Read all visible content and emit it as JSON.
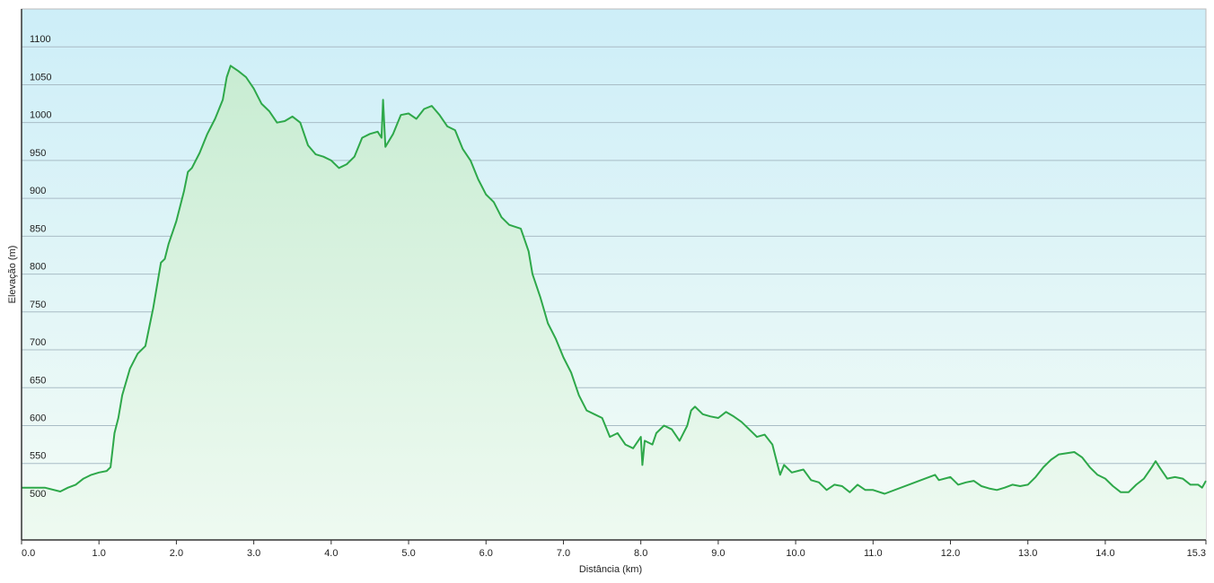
{
  "chart_data": {
    "type": "area",
    "xlabel": "Distância  (km)",
    "ylabel": "Elevação (m)",
    "color": "#2ea84a",
    "grid": true,
    "xlim": [
      0,
      15.3
    ],
    "ylim": [
      449,
      1150
    ],
    "yticks": [
      500,
      550,
      600,
      650,
      700,
      750,
      800,
      850,
      900,
      950,
      1000,
      1050,
      1100
    ],
    "xticks": [
      {
        "value": 0,
        "label": "0.0"
      },
      {
        "value": 1,
        "label": "1.0"
      },
      {
        "value": 2,
        "label": "2.0"
      },
      {
        "value": 3,
        "label": "3.0"
      },
      {
        "value": 4,
        "label": "4.0"
      },
      {
        "value": 5,
        "label": "5.0"
      },
      {
        "value": 6,
        "label": "6.0"
      },
      {
        "value": 7,
        "label": "7.0"
      },
      {
        "value": 8,
        "label": "8.0"
      },
      {
        "value": 9,
        "label": "9.0"
      },
      {
        "value": 10,
        "label": "10.0"
      },
      {
        "value": 11,
        "label": "11.0"
      },
      {
        "value": 12,
        "label": "12.0"
      },
      {
        "value": 13,
        "label": "13.0"
      },
      {
        "value": 14,
        "label": "14.0"
      },
      {
        "value": 15.3,
        "label": "15.3"
      }
    ],
    "x": [
      0,
      0.3,
      0.5,
      0.6,
      0.7,
      0.8,
      0.9,
      1.0,
      1.1,
      1.15,
      1.2,
      1.25,
      1.3,
      1.4,
      1.5,
      1.6,
      1.7,
      1.8,
      1.85,
      1.9,
      2.0,
      2.05,
      2.1,
      2.15,
      2.2,
      2.3,
      2.4,
      2.5,
      2.6,
      2.65,
      2.7,
      2.8,
      2.9,
      3.0,
      3.1,
      3.2,
      3.3,
      3.4,
      3.5,
      3.6,
      3.7,
      3.8,
      3.9,
      4.0,
      4.1,
      4.2,
      4.3,
      4.4,
      4.5,
      4.6,
      4.65,
      4.67,
      4.7,
      4.8,
      4.9,
      5.0,
      5.1,
      5.2,
      5.3,
      5.4,
      5.5,
      5.6,
      5.7,
      5.8,
      5.9,
      6.0,
      6.1,
      6.2,
      6.3,
      6.45,
      6.55,
      6.6,
      6.7,
      6.8,
      6.9,
      7.0,
      7.1,
      7.2,
      7.3,
      7.4,
      7.5,
      7.6,
      7.7,
      7.8,
      7.9,
      8.0,
      8.02,
      8.05,
      8.15,
      8.2,
      8.3,
      8.4,
      8.5,
      8.6,
      8.65,
      8.7,
      8.8,
      8.9,
      9.0,
      9.1,
      9.2,
      9.3,
      9.4,
      9.5,
      9.6,
      9.7,
      9.8,
      9.85,
      9.95,
      10.1,
      10.2,
      10.3,
      10.4,
      10.5,
      10.6,
      10.7,
      10.8,
      10.9,
      11.0,
      11.15,
      11.8,
      11.85,
      12.0,
      12.1,
      12.2,
      12.3,
      12.4,
      12.5,
      12.6,
      12.7,
      12.8,
      12.9,
      13.0,
      13.1,
      13.2,
      13.3,
      13.4,
      13.6,
      13.7,
      13.8,
      13.9,
      14.0,
      14.1,
      14.2,
      14.3,
      14.4,
      14.5,
      14.6,
      14.65,
      14.7,
      14.8,
      14.9,
      15.0,
      15.1,
      15.2,
      15.25,
      15.3
    ],
    "values": [
      518,
      518,
      513,
      518,
      522,
      530,
      535,
      538,
      540,
      545,
      590,
      610,
      640,
      675,
      695,
      705,
      755,
      815,
      820,
      840,
      870,
      890,
      910,
      935,
      940,
      960,
      985,
      1005,
      1030,
      1060,
      1075,
      1068,
      1060,
      1045,
      1025,
      1015,
      1000,
      1002,
      1008,
      1000,
      970,
      958,
      955,
      950,
      940,
      945,
      955,
      980,
      985,
      988,
      980,
      1030,
      968,
      985,
      1010,
      1012,
      1005,
      1018,
      1022,
      1010,
      995,
      990,
      965,
      950,
      925,
      905,
      895,
      875,
      865,
      860,
      830,
      800,
      770,
      735,
      715,
      690,
      670,
      640,
      620,
      615,
      610,
      585,
      590,
      575,
      570,
      585,
      548,
      580,
      575,
      590,
      600,
      595,
      580,
      600,
      620,
      625,
      615,
      612,
      610,
      618,
      612,
      605,
      595,
      585,
      588,
      575,
      535,
      548,
      538,
      542,
      528,
      525,
      515,
      522,
      520,
      512,
      522,
      515,
      515,
      510,
      535,
      528,
      532,
      522,
      525,
      527,
      520,
      517,
      515,
      518,
      522,
      520,
      522,
      532,
      545,
      555,
      562,
      565,
      558,
      545,
      535,
      530,
      520,
      512,
      512,
      522,
      530,
      545,
      553,
      545,
      530,
      532,
      530,
      522,
      522,
      518,
      527
    ]
  }
}
